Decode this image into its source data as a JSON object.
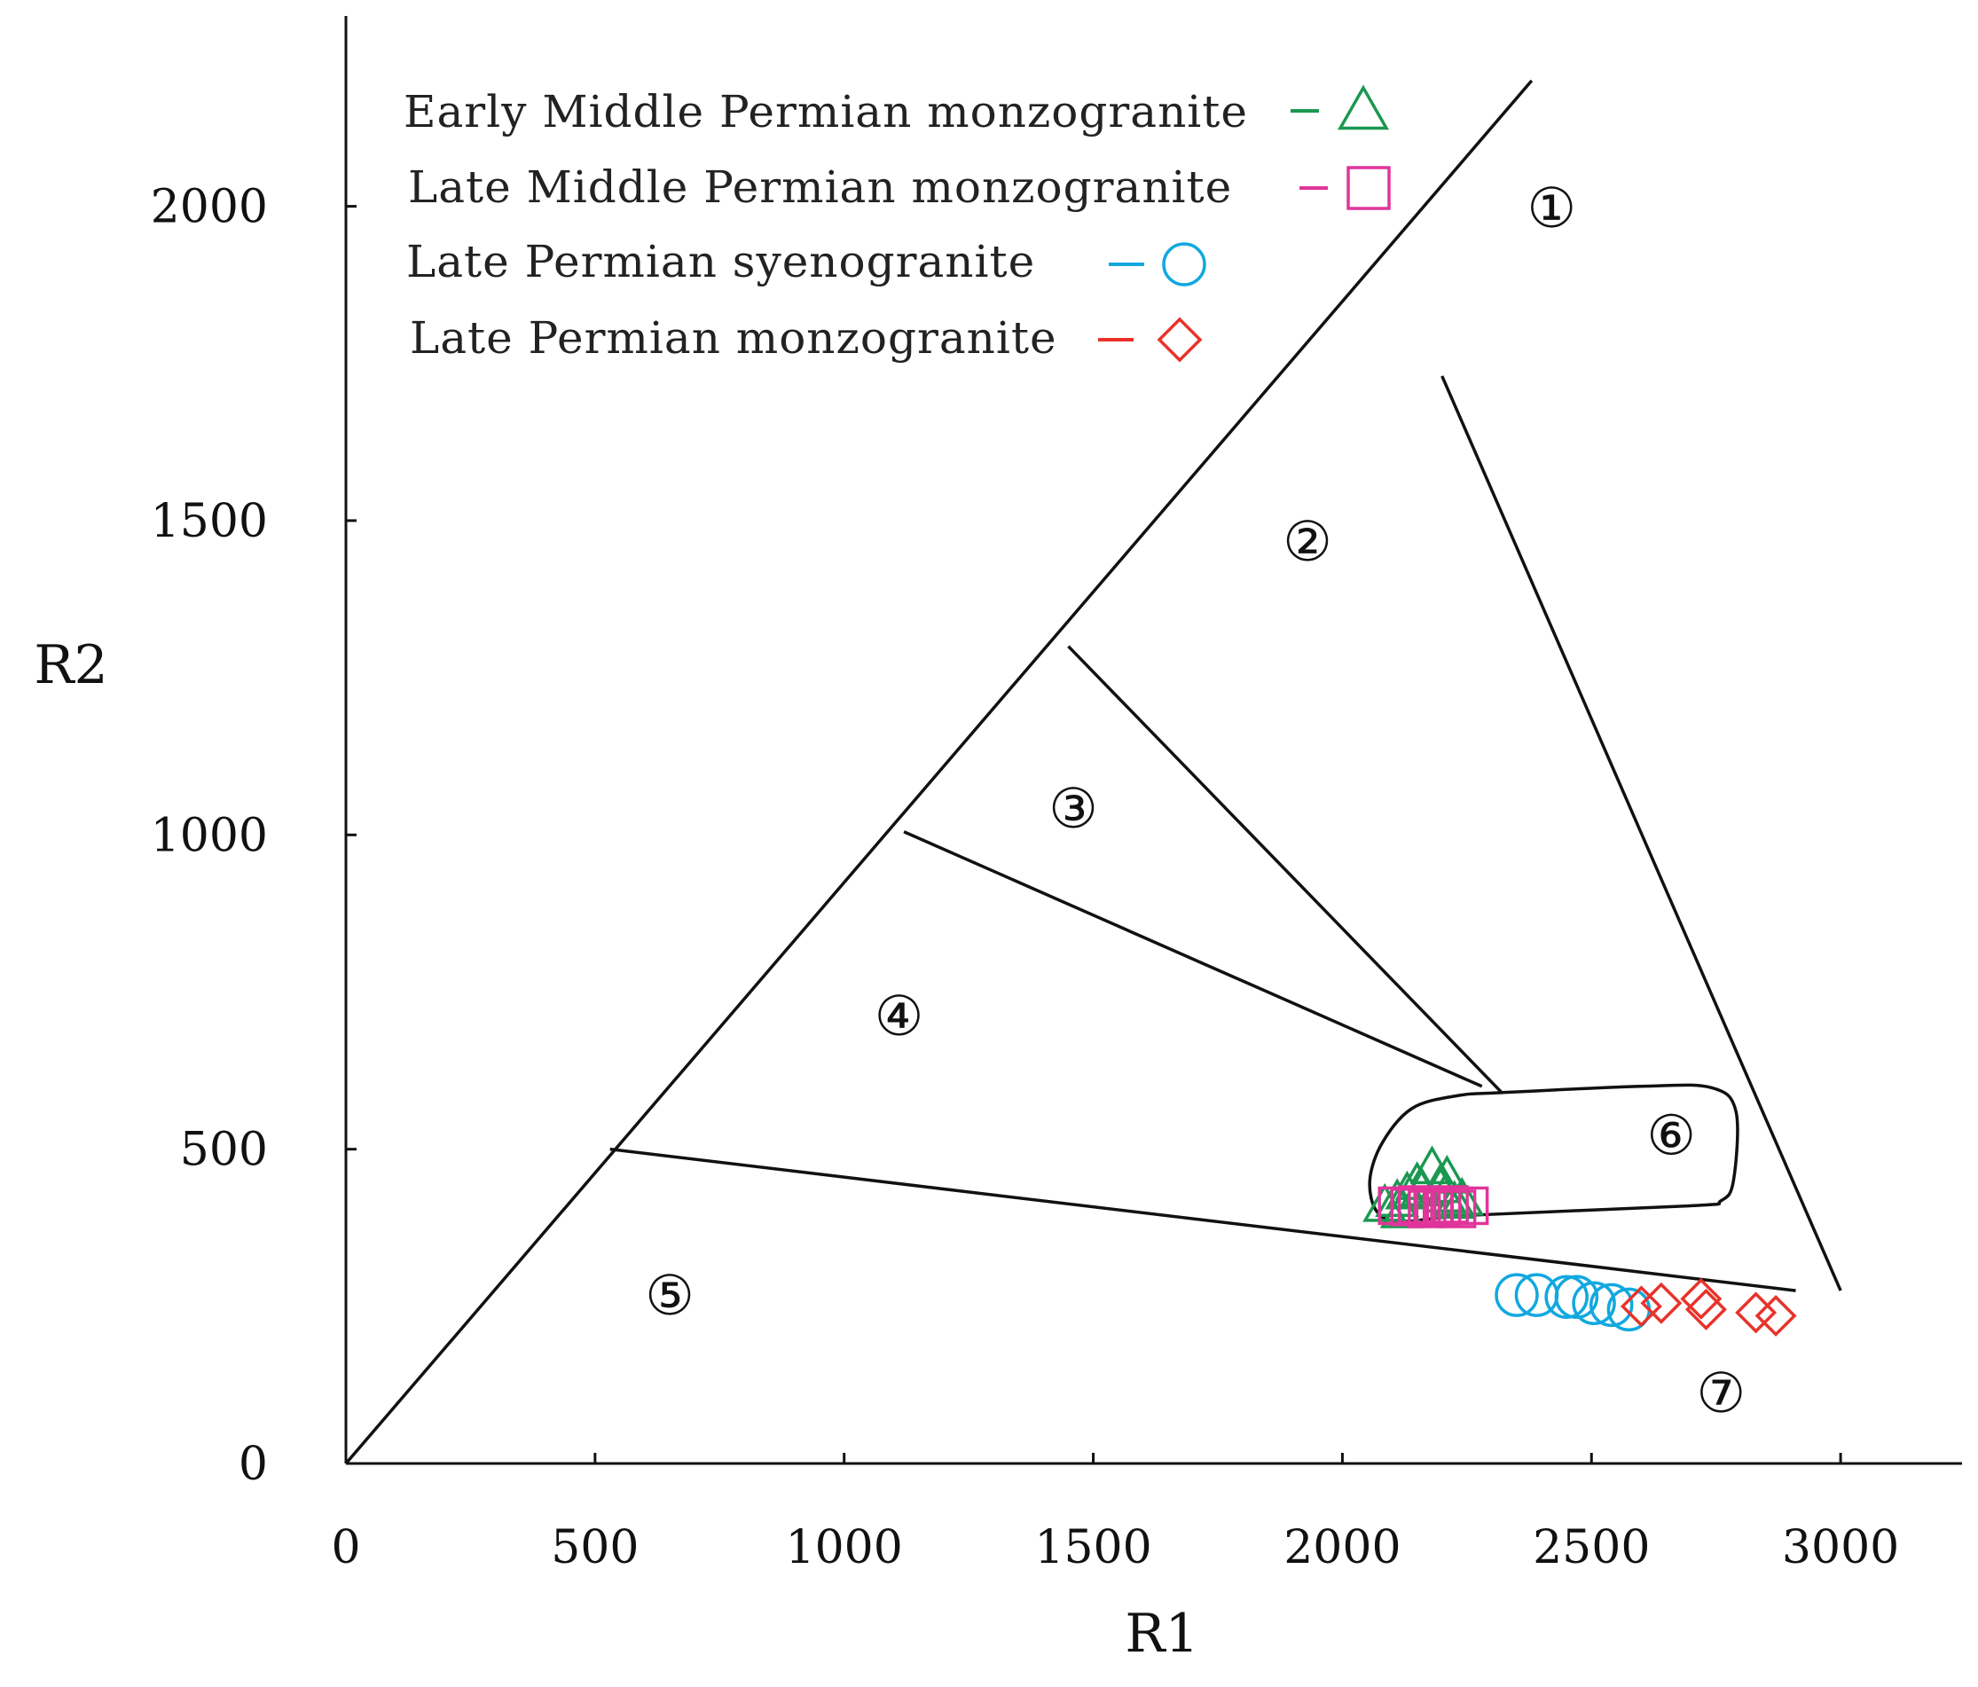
{
  "chart_data": {
    "type": "scatter",
    "title": "",
    "xlabel": "R1",
    "ylabel": "R2",
    "xlim": [
      0,
      3250
    ],
    "ylim": [
      0,
      2280
    ],
    "x_ticks": [
      0,
      500,
      1000,
      1500,
      2000,
      2500,
      3000
    ],
    "y_ticks": [
      0,
      500,
      1000,
      1500,
      2000
    ],
    "legend_position": "top-left",
    "series": [
      {
        "name": "Early Middle Permian monzogranite",
        "marker": "triangle",
        "color": "#1a9850",
        "points": [
          [
            2085,
            410
          ],
          [
            2110,
            418
          ],
          [
            2130,
            430
          ],
          [
            2150,
            445
          ],
          [
            2160,
            435
          ],
          [
            2180,
            470
          ],
          [
            2195,
            440
          ],
          [
            2205,
            425
          ],
          [
            2210,
            455
          ],
          [
            2225,
            415
          ],
          [
            2240,
            420
          ],
          [
            2120,
            400
          ]
        ]
      },
      {
        "name": "Late Middle Permian monzogranite",
        "marker": "square",
        "color": "#e0359b",
        "points": [
          [
            2110,
            410
          ],
          [
            2135,
            408
          ],
          [
            2150,
            412
          ],
          [
            2170,
            405
          ],
          [
            2185,
            410
          ],
          [
            2200,
            408
          ],
          [
            2215,
            412
          ],
          [
            2230,
            405
          ],
          [
            2255,
            410
          ]
        ]
      },
      {
        "name": "Late Permian syenogranite",
        "marker": "circle",
        "color": "#12a8df",
        "points": [
          [
            2350,
            268
          ],
          [
            2390,
            268
          ],
          [
            2450,
            265
          ],
          [
            2470,
            265
          ],
          [
            2505,
            255
          ],
          [
            2540,
            252
          ],
          [
            2575,
            245
          ]
        ]
      },
      {
        "name": "Late Permian monzogranite",
        "marker": "diamond",
        "color": "#e8322a",
        "points": [
          [
            2600,
            250
          ],
          [
            2640,
            255
          ],
          [
            2720,
            262
          ],
          [
            2730,
            245
          ],
          [
            2830,
            240
          ],
          [
            2870,
            235
          ]
        ]
      }
    ],
    "region_labels": [
      {
        "text": "①",
        "x": 2420,
        "y": 1995
      },
      {
        "text": "②",
        "x": 1930,
        "y": 1465
      },
      {
        "text": "③",
        "x": 1460,
        "y": 1040
      },
      {
        "text": "④",
        "x": 1110,
        "y": 710
      },
      {
        "text": "⑤",
        "x": 650,
        "y": 265
      },
      {
        "text": "⑥",
        "x": 2660,
        "y": 520
      },
      {
        "text": "⑦",
        "x": 2760,
        "y": 110
      }
    ],
    "boundary_lines": [
      [
        [
          0,
          0
        ],
        [
          2380,
          2200
        ]
      ],
      [
        [
          530,
          500
        ],
        [
          2910,
          275
        ]
      ],
      [
        [
          1120,
          1005
        ],
        [
          2280,
          600
        ]
      ],
      [
        [
          1450,
          1300
        ],
        [
          2320,
          590
        ]
      ],
      [
        [
          2200,
          1730
        ],
        [
          3000,
          275
        ]
      ]
    ],
    "field_6_outline": [
      [
        2320,
        590
      ],
      [
        2600,
        600
      ],
      [
        2740,
        598
      ],
      [
        2790,
        560
      ],
      [
        2785,
        450
      ],
      [
        2760,
        418
      ],
      [
        2700,
        410
      ],
      [
        2260,
        395
      ],
      [
        2120,
        385
      ],
      [
        2070,
        400
      ],
      [
        2055,
        450
      ],
      [
        2080,
        510
      ],
      [
        2140,
        565
      ],
      [
        2230,
        585
      ]
    ]
  }
}
